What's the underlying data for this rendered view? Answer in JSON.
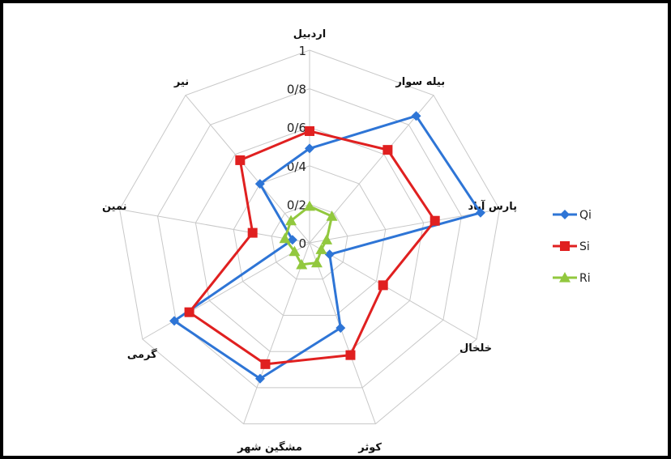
{
  "chart_data": {
    "type": "radar",
    "categories": [
      "اردبیل",
      "بیله سوار",
      "پارس آباد",
      "خلخال",
      "کوثر",
      "مشگین شهر",
      "گرمی",
      "نمین",
      "نیر"
    ],
    "rlim": [
      0,
      1
    ],
    "rticks": [
      0,
      0.2,
      0.4,
      0.6,
      0.8,
      1
    ],
    "rtick_labels": [
      "0",
      "0/2",
      "0/4",
      "0/6",
      "0/8",
      "1"
    ],
    "grid": true,
    "legend": "right",
    "series": [
      {
        "name": "Qi",
        "color": "#2E75D6",
        "marker": "diamond",
        "values": [
          0.49,
          0.86,
          0.9,
          0.12,
          0.47,
          0.75,
          0.81,
          0.09,
          0.4
        ]
      },
      {
        "name": "Si",
        "color": "#E02020",
        "marker": "square",
        "values": [
          0.58,
          0.63,
          0.66,
          0.44,
          0.62,
          0.67,
          0.72,
          0.3,
          0.56
        ]
      },
      {
        "name": "Ri",
        "color": "#92C83E",
        "marker": "triangle",
        "values": [
          0.19,
          0.18,
          0.09,
          0.07,
          0.11,
          0.12,
          0.09,
          0.13,
          0.15
        ]
      }
    ]
  }
}
